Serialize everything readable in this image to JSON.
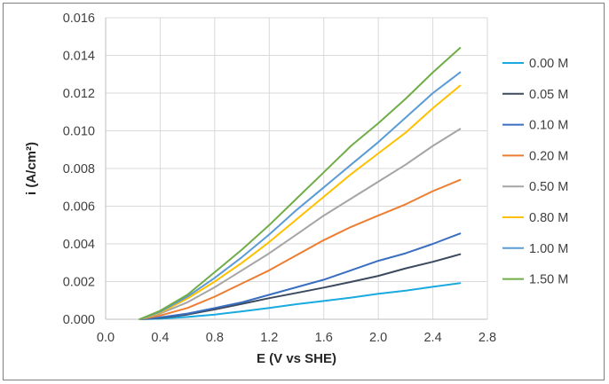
{
  "chart_data": {
    "type": "line",
    "title": "",
    "xlabel": "E (V vs SHE)",
    "ylabel": "i (A/cm²)",
    "xlim": [
      0.0,
      2.8
    ],
    "ylim": [
      0.0,
      0.016
    ],
    "x_ticks": [
      "0.0",
      "0.4",
      "0.8",
      "1.2",
      "1.6",
      "2.0",
      "2.4",
      "2.8"
    ],
    "y_ticks": [
      "0.000",
      "0.002",
      "0.004",
      "0.006",
      "0.008",
      "0.010",
      "0.012",
      "0.014",
      "0.016"
    ],
    "grid": true,
    "legend_position": "right",
    "x": [
      0.25,
      0.4,
      0.6,
      0.8,
      1.0,
      1.2,
      1.4,
      1.6,
      1.8,
      2.0,
      2.2,
      2.4,
      2.6
    ],
    "series": [
      {
        "name": "0.00 M",
        "color": "#19aadf",
        "values": [
          0.0,
          3e-05,
          0.00012,
          0.00025,
          0.00042,
          0.0006,
          0.0008,
          0.00097,
          0.00115,
          0.00135,
          0.00152,
          0.00172,
          0.00192
        ]
      },
      {
        "name": "0.05 M",
        "color": "#3b4a5e",
        "values": [
          0.0,
          7e-05,
          0.00025,
          0.00052,
          0.00082,
          0.00112,
          0.0014,
          0.00168,
          0.00198,
          0.0023,
          0.0027,
          0.00305,
          0.00345
        ]
      },
      {
        "name": "0.10 M",
        "color": "#3a6ec0",
        "values": [
          0.0,
          0.0001,
          0.0003,
          0.0006,
          0.0009,
          0.0013,
          0.0017,
          0.0021,
          0.0026,
          0.0031,
          0.0035,
          0.004,
          0.00455
        ]
      },
      {
        "name": "0.20 M",
        "color": "#ed7d31",
        "values": [
          0.0,
          0.0002,
          0.0006,
          0.0012,
          0.0019,
          0.0026,
          0.0034,
          0.0042,
          0.0049,
          0.0055,
          0.0061,
          0.0068,
          0.0074
        ]
      },
      {
        "name": "0.50 M",
        "color": "#a5a5a5",
        "values": [
          0.0,
          0.0003,
          0.0009,
          0.0017,
          0.0026,
          0.0035,
          0.0045,
          0.0055,
          0.0064,
          0.0073,
          0.0082,
          0.0092,
          0.0101
        ]
      },
      {
        "name": "0.80 M",
        "color": "#ffc000",
        "values": [
          0.0,
          0.00035,
          0.0011,
          0.002,
          0.003,
          0.0041,
          0.0053,
          0.0065,
          0.0077,
          0.0088,
          0.0099,
          0.0112,
          0.0124
        ]
      },
      {
        "name": "1.00 M",
        "color": "#5b9bd5",
        "values": [
          0.0,
          0.0004,
          0.0012,
          0.0022,
          0.0033,
          0.0045,
          0.0058,
          0.007,
          0.0082,
          0.0094,
          0.0107,
          0.012,
          0.0131
        ]
      },
      {
        "name": "1.50 M",
        "color": "#70ad47",
        "values": [
          0.0,
          0.00045,
          0.0013,
          0.0025,
          0.0037,
          0.005,
          0.0064,
          0.0078,
          0.0092,
          0.0104,
          0.0117,
          0.0131,
          0.0144
        ]
      }
    ]
  }
}
